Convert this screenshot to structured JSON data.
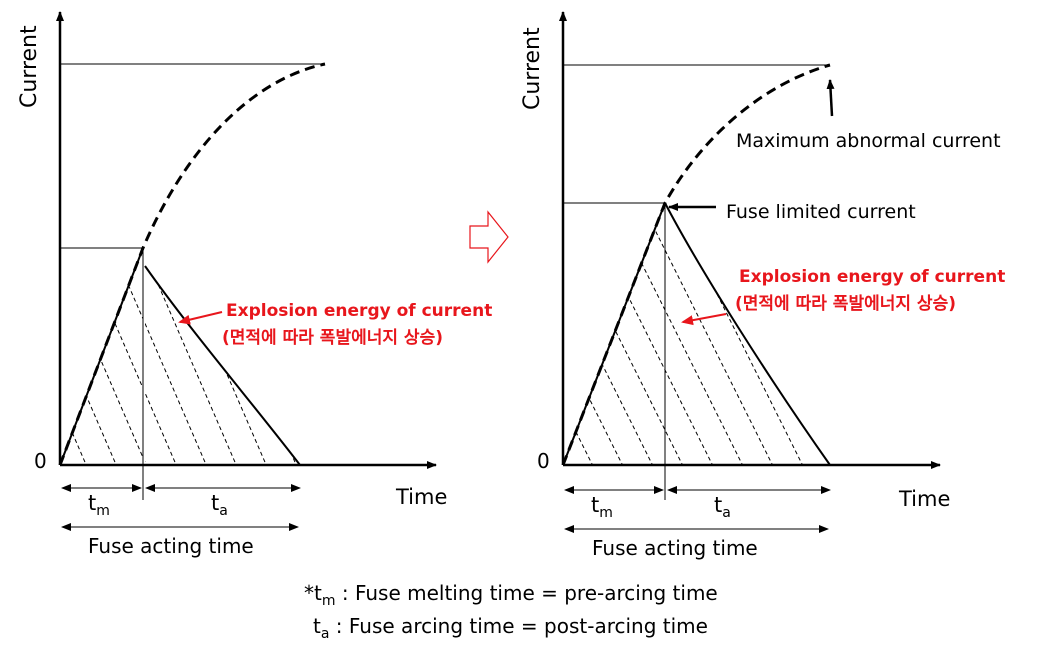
{
  "left_panel": {
    "y_axis_label": "Current",
    "x_axis_label": "Time",
    "origin_label": "0",
    "tm_label": "t",
    "tm_sub": "m",
    "ta_label": "t",
    "ta_sub": "a",
    "acting_label": "Fuse acting time",
    "energy_label": "Explosion energy of current",
    "energy_sub_label": "(면적에 따라 폭발에너지 상승)"
  },
  "right_panel": {
    "y_axis_label": "Current",
    "x_axis_label": "Time",
    "origin_label": "0",
    "tm_label": "t",
    "tm_sub": "m",
    "ta_label": "t",
    "ta_sub": "a",
    "acting_label": "Fuse acting time",
    "energy_label": "Explosion energy of current",
    "energy_sub_label": "(면적에 따라 폭발에너지 상승)",
    "max_current_label": "Maximum abnormal current",
    "limited_current_label": "Fuse limited current"
  },
  "footnote": {
    "line1_prefix": "*t",
    "line1_sub": "m",
    "line1_text": " : Fuse melting time = pre-arcing time",
    "line2_prefix": "t",
    "line2_sub": "a",
    "line2_text": " : Fuse arcing time = post-arcing time"
  },
  "colors": {
    "annotation": "#e8161c",
    "arrow_outline": "#e8161c",
    "ink": "#000000"
  }
}
